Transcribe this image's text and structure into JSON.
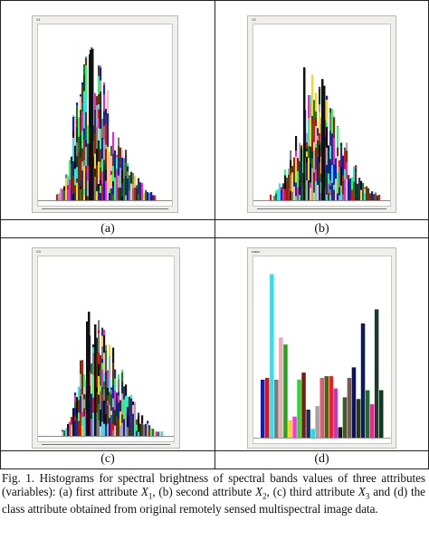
{
  "figure": {
    "panels": [
      {
        "id": "a",
        "label": "(a)",
        "tag": "X1",
        "kind": "hist",
        "seed": 11,
        "center": 0.33,
        "spread": 0.15,
        "skew": 1.5,
        "peak": 0.95,
        "hue": 0
      },
      {
        "id": "b",
        "label": "(b)",
        "tag": "X2",
        "kind": "hist",
        "seed": 27,
        "center": 0.42,
        "spread": 0.22,
        "skew": 1.0,
        "peak": 0.78,
        "hue": 40
      },
      {
        "id": "c",
        "label": "(c)",
        "tag": "X3",
        "kind": "hist",
        "seed": 53,
        "center": 0.38,
        "spread": 0.16,
        "skew": 1.4,
        "peak": 0.72,
        "hue": 80
      },
      {
        "id": "d",
        "label": "(d)",
        "tag": "class",
        "kind": "bars",
        "bars": [
          {
            "color": "#0b1cc9",
            "value": 0.33
          },
          {
            "color": "#e01313",
            "value": 0.34
          },
          {
            "color": "#2ee1f0",
            "value": 0.93
          },
          {
            "color": "#7a7a7a",
            "value": 0.33
          },
          {
            "color": "#f4a7b6",
            "value": 0.57
          },
          {
            "color": "#1fa81f",
            "value": 0.53
          },
          {
            "color": "#ffd21a",
            "value": 0.1
          },
          {
            "color": "#ff2ff0",
            "value": 0.12
          },
          {
            "color": "#2cd62c",
            "value": 0.33
          },
          {
            "color": "#7a1a10",
            "value": 0.37
          },
          {
            "color": "#1d2a63",
            "value": 0.16
          },
          {
            "color": "#14e0ee",
            "value": 0.05
          },
          {
            "color": "#a3a3a3",
            "value": 0.18
          },
          {
            "color": "#e15a73",
            "value": 0.34
          },
          {
            "color": "#3a6b10",
            "value": 0.35
          },
          {
            "color": "#ff1a1a",
            "value": 0.35
          },
          {
            "color": "#d02bd0",
            "value": 0.28
          },
          {
            "color": "#0f1a0f",
            "value": 0.06
          },
          {
            "color": "#3f5a2a",
            "value": 0.23
          },
          {
            "color": "#7b5a4a",
            "value": 0.34
          },
          {
            "color": "#0b0f6b",
            "value": 0.4
          },
          {
            "color": "#2a3a0a",
            "value": 0.22
          },
          {
            "color": "#0e1b5b",
            "value": 0.65
          },
          {
            "color": "#1e6e2a",
            "value": 0.27
          },
          {
            "color": "#ff1aa0",
            "value": 0.19
          },
          {
            "color": "#1d3a2a",
            "value": 0.73
          },
          {
            "color": "#0e3b20",
            "value": 0.27
          }
        ]
      }
    ],
    "caption": {
      "prefix": "Fig. 1.  Histograms for spectral brightness of spectral bands values of three attributes (variables): (a) first attribute ",
      "v1": "X",
      "s1": "1",
      "mid1": ", (b) second attribute ",
      "v2": "X",
      "s2": "2",
      "mid2": ", (c) third attribute ",
      "v3": "X",
      "s3": "3",
      "suffix": " and (d) the class attribute obtained from original remotely sensed multispectral image data."
    },
    "palette": [
      "#111111",
      "#1f7a1f",
      "#2ee1f0",
      "#e01313",
      "#0b1cc9",
      "#ffb6c1",
      "#8b2500",
      "#a6a6a6",
      "#2c2c7a",
      "#5d3a10",
      "#22ff66",
      "#e02bd0",
      "#ffd21a",
      "#0e3b20",
      "#7a7a7a",
      "#ffffff"
    ]
  }
}
